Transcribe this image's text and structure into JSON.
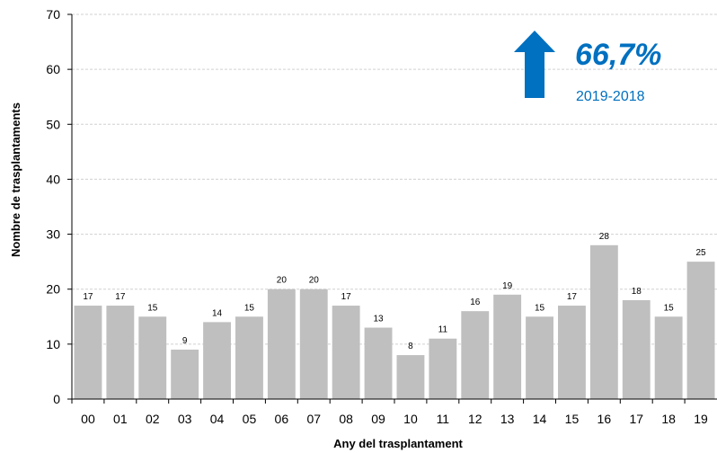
{
  "chart_data": {
    "type": "bar",
    "categories": [
      "00",
      "01",
      "02",
      "03",
      "04",
      "05",
      "06",
      "07",
      "08",
      "09",
      "10",
      "11",
      "12",
      "13",
      "14",
      "15",
      "16",
      "17",
      "18",
      "19"
    ],
    "values": [
      17,
      17,
      15,
      9,
      14,
      15,
      20,
      20,
      17,
      13,
      8,
      11,
      16,
      19,
      15,
      17,
      28,
      18,
      15,
      25
    ],
    "xlabel": "Any del trasplantament",
    "ylabel": "Nombre de trasplantaments",
    "ylim": [
      0,
      70
    ],
    "yticks": [
      0,
      10,
      20,
      30,
      40,
      50,
      60,
      70
    ],
    "grid": true,
    "bar_color": "#bfbfbf",
    "annotation": {
      "arrow": "up-arrow-icon",
      "value": "66,7%",
      "period": "2019-2018",
      "color": "#0070c0"
    }
  }
}
